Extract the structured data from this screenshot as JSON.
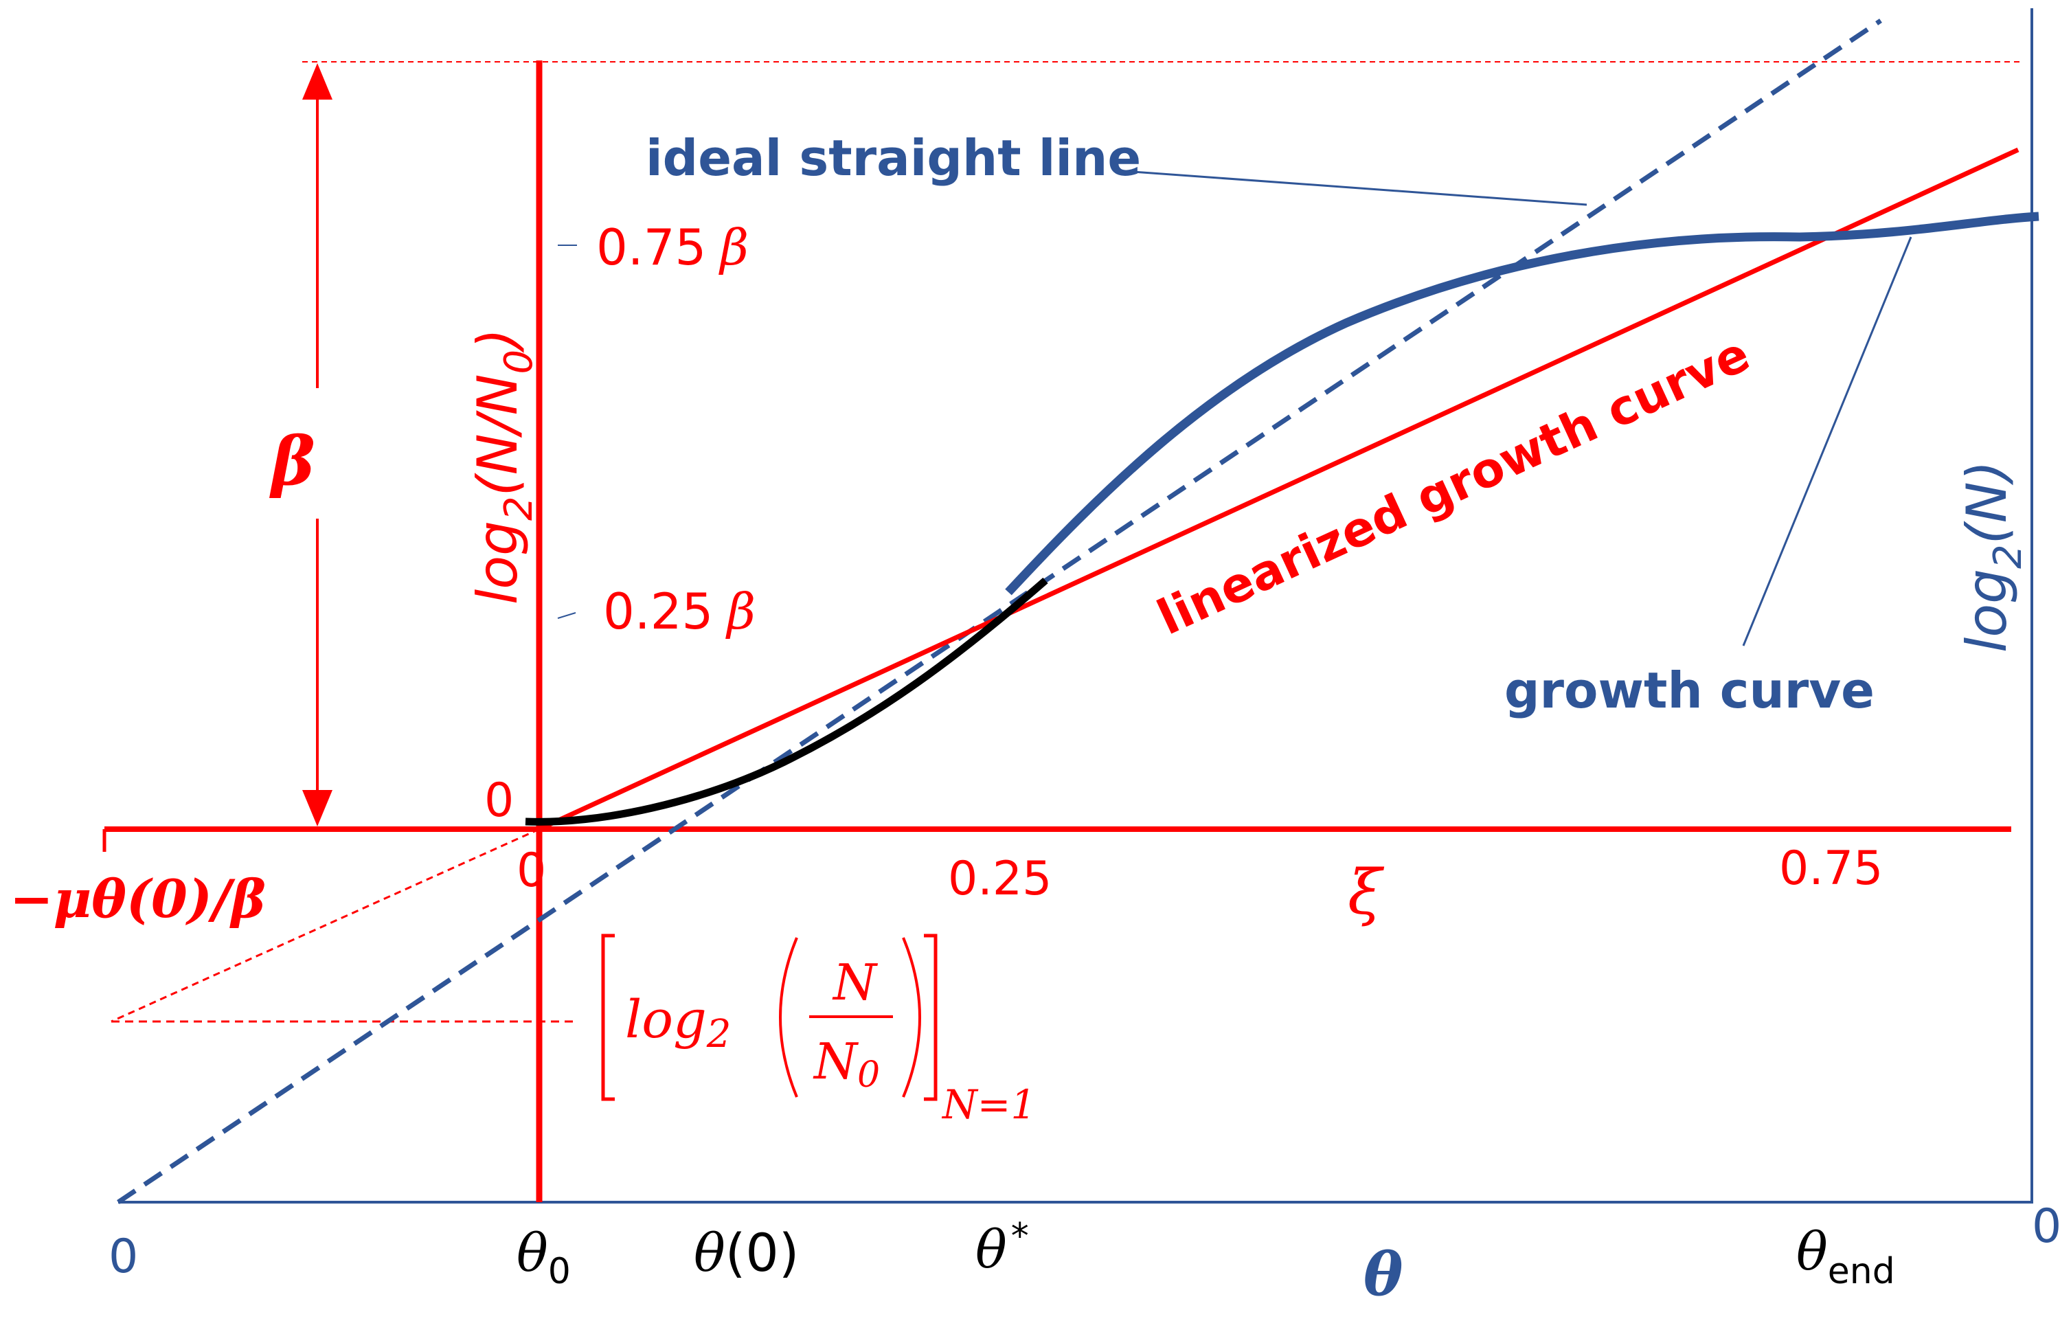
{
  "colors": {
    "red": "#ff0000",
    "blue": "#2f5597",
    "black": "#000000"
  },
  "labels": {
    "ideal_straight_line": "ideal straight line",
    "linearized_growth_curve": "linearized growth curve",
    "growth_curve": "growth curve",
    "beta": "β",
    "y_axis_red_log": "log",
    "y_axis_red_sub": "2",
    "y_axis_red_arg_open": "(N/N",
    "y_axis_red_arg_sub": "0",
    "y_axis_red_arg_close": ")",
    "y_axis_blue_log": "log",
    "y_axis_blue_sub": "2",
    "y_axis_blue_arg": "(N)",
    "tick_075_beta_num": "0.75",
    "tick_075_beta_sym": "β",
    "tick_025_beta_num": "0.25",
    "tick_025_beta_sym": "β",
    "y_zero_red": "0",
    "y_zero_blue": "0",
    "xi_zero": "0",
    "xi_025": "0.25",
    "xi_075": "0.75",
    "xi_symbol": "ξ",
    "neg_intercept": "−μθ(0)/β",
    "bracket_log": "log",
    "bracket_sub": "2",
    "bracket_num": "N",
    "bracket_den": "N",
    "bracket_den_sub": "0",
    "bracket_cond": "N=1",
    "theta_axis_zero": "0",
    "theta_0": "θ",
    "theta_0_sub": "0",
    "theta_of_0": "θ",
    "theta_of_0_arg": "(0)",
    "theta_star": "θ",
    "theta_star_sup": "*",
    "theta_symbol": "θ",
    "theta_end": "θ",
    "theta_end_sub": "end"
  }
}
